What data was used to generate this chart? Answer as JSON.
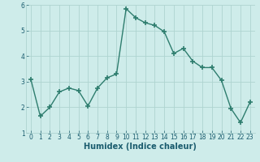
{
  "x": [
    0,
    1,
    2,
    3,
    4,
    5,
    6,
    7,
    8,
    9,
    10,
    11,
    12,
    13,
    14,
    15,
    16,
    17,
    18,
    19,
    20,
    21,
    22,
    23
  ],
  "y": [
    3.1,
    1.65,
    2.0,
    2.6,
    2.75,
    2.65,
    2.05,
    2.75,
    3.15,
    3.3,
    5.85,
    5.5,
    5.3,
    5.2,
    4.95,
    4.1,
    4.3,
    3.8,
    3.55,
    3.55,
    3.05,
    1.95,
    1.4,
    2.2
  ],
  "line_color": "#2e7d6e",
  "marker": "+",
  "marker_size": 4,
  "marker_lw": 1.2,
  "bg_color": "#ceecea",
  "grid_color": "#aed4d0",
  "xlabel": "Humidex (Indice chaleur)",
  "xlabel_fontsize": 7,
  "xlabel_color": "#1a5c6e",
  "xlabel_bold": true,
  "ylim": [
    1,
    6
  ],
  "xlim": [
    -0.5,
    23.5
  ],
  "yticks": [
    1,
    2,
    3,
    4,
    5,
    6
  ],
  "xticks": [
    0,
    1,
    2,
    3,
    4,
    5,
    6,
    7,
    8,
    9,
    10,
    11,
    12,
    13,
    14,
    15,
    16,
    17,
    18,
    19,
    20,
    21,
    22,
    23
  ],
  "tick_fontsize": 5.5,
  "tick_color": "#1a5c6e",
  "line_width": 1.0
}
